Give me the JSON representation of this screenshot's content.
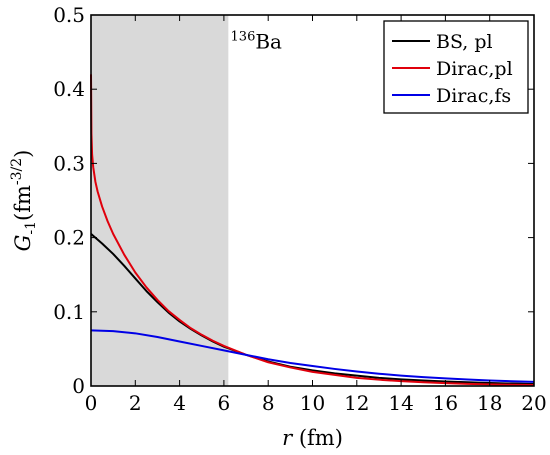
{
  "chart_data": {
    "type": "line",
    "xlabel": "r (fm)",
    "ylabel": "G_{-1}(fm^{-3/2})",
    "xlim": [
      0,
      20
    ],
    "ylim": [
      0,
      0.5
    ],
    "x_ticks": [
      0,
      2,
      4,
      6,
      8,
      10,
      12,
      14,
      16,
      18,
      20
    ],
    "y_ticks": [
      0,
      0.1,
      0.2,
      0.3,
      0.4,
      0.5
    ],
    "x_tick_labels": [
      "0",
      "2",
      "4",
      "6",
      "8",
      "10",
      "12",
      "14",
      "16",
      "18",
      "20"
    ],
    "y_tick_labels": [
      "0",
      "0.1",
      "0.2",
      "0.3",
      "0.4",
      "0.5"
    ],
    "grid": false,
    "legend_position": "top-right",
    "shaded_region": {
      "x_from": 0,
      "x_to": 6.2,
      "color": "#d9d9d9"
    },
    "annotation": {
      "superscript": "136",
      "text": "Ba",
      "x": 6.3,
      "y": 0.455
    },
    "series": [
      {
        "name": "BS, pl",
        "color": "#000000",
        "x": [
          0,
          0.5,
          1,
          1.5,
          2,
          2.5,
          3,
          3.5,
          4,
          4.5,
          5,
          5.5,
          6,
          7,
          8,
          9,
          10,
          11,
          12,
          13,
          14,
          15,
          16,
          17,
          18,
          19,
          20
        ],
        "y": [
          0.205,
          0.192,
          0.178,
          0.162,
          0.145,
          0.128,
          0.113,
          0.099,
          0.087,
          0.077,
          0.068,
          0.06,
          0.053,
          0.042,
          0.033,
          0.026,
          0.021,
          0.017,
          0.014,
          0.011,
          0.009,
          0.0075,
          0.006,
          0.005,
          0.004,
          0.0033,
          0.0027
        ]
      },
      {
        "name": "Dirac,pl",
        "color": "#e0000c",
        "x": [
          0,
          0.02,
          0.05,
          0.1,
          0.2,
          0.3,
          0.5,
          0.75,
          1,
          1.5,
          2,
          2.5,
          3,
          3.5,
          4,
          4.5,
          5,
          5.5,
          6,
          7,
          8,
          9,
          10,
          11,
          12,
          13,
          14,
          15,
          16,
          17,
          18,
          19,
          20
        ],
        "y": [
          0.42,
          0.34,
          0.312,
          0.295,
          0.275,
          0.262,
          0.242,
          0.222,
          0.205,
          0.177,
          0.153,
          0.133,
          0.116,
          0.101,
          0.089,
          0.078,
          0.069,
          0.061,
          0.054,
          0.042,
          0.032,
          0.025,
          0.019,
          0.015,
          0.011,
          0.0085,
          0.0065,
          0.005,
          0.0038,
          0.0029,
          0.0022,
          0.0017,
          0.0013
        ]
      },
      {
        "name": "Dirac,fs",
        "color": "#0000e6",
        "x": [
          0,
          1,
          2,
          3,
          4,
          5,
          6,
          7,
          8,
          9,
          10,
          11,
          12,
          13,
          14,
          15,
          16,
          17,
          18,
          19,
          20
        ],
        "y": [
          0.075,
          0.074,
          0.071,
          0.066,
          0.06,
          0.054,
          0.048,
          0.042,
          0.036,
          0.031,
          0.027,
          0.023,
          0.0195,
          0.0165,
          0.014,
          0.012,
          0.0102,
          0.0088,
          0.0075,
          0.0064,
          0.0055
        ]
      }
    ]
  }
}
